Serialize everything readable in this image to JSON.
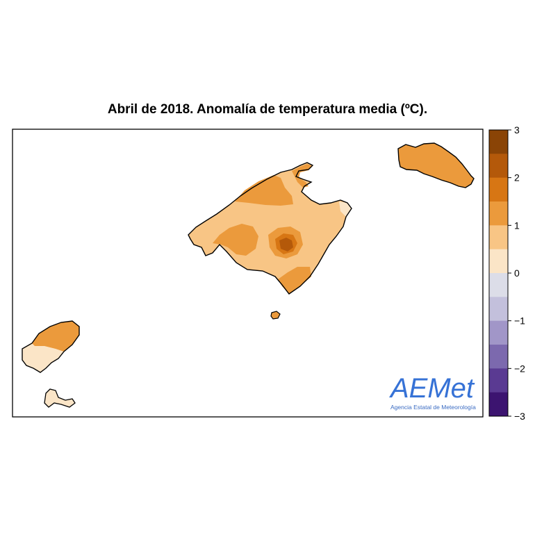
{
  "title": "Abril de 2018. Anomalía de temperatura media (ºC).",
  "legend": {
    "ticks": [
      "3",
      "2",
      "1",
      "0",
      "−1",
      "−2",
      "−3"
    ],
    "colors": [
      "#8a4406",
      "#b4590a",
      "#d77614",
      "#eb9a3c",
      "#f8c585",
      "#fbe5c7",
      "#dcdde8",
      "#c3c0dc",
      "#a196c8",
      "#7c69ae",
      "#5a3a92",
      "#3c1470"
    ]
  },
  "map_colors": {
    "lightest": "#fbe5c7",
    "light": "#f8c585",
    "medium": "#eb9a3c",
    "dark": "#d77614",
    "darker": "#b4590a"
  },
  "logo": {
    "main_text": "AEMet",
    "subtitle": "Agencia Estatal de Meteorología"
  }
}
